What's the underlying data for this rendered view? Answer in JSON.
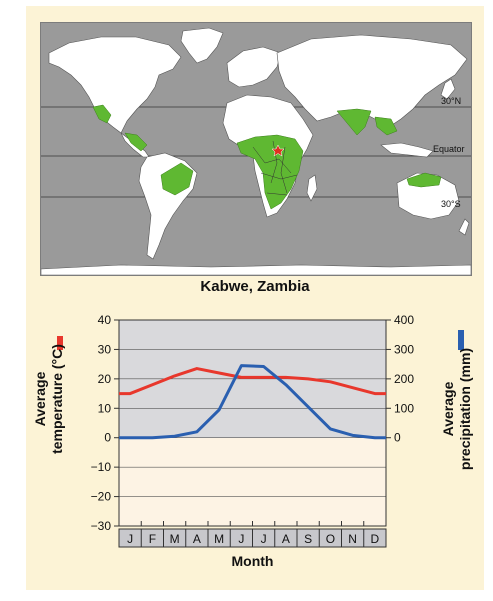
{
  "map": {
    "latitude_labels": [
      "30°N",
      "Equator",
      "30°S"
    ],
    "colors": {
      "ocean": "#9a9a9a",
      "land": "#ffffff",
      "border": "#555555",
      "climate_region": "#5fb832",
      "marker": "#e03020"
    }
  },
  "location_title": "Kabwe, Zambia",
  "chart_data": {
    "type": "line",
    "title": "Kabwe, Zambia",
    "categories": [
      "J",
      "F",
      "M",
      "A",
      "M",
      "J",
      "J",
      "A",
      "S",
      "O",
      "N",
      "D"
    ],
    "xlabel": "Month",
    "ylabel_left_line1": "Average",
    "ylabel_left_line2": "temperature (°C)",
    "ylabel_right_line1": "Average",
    "ylabel_right_line2": "precipitation (mm)",
    "ylim_left": [
      -30,
      40
    ],
    "ylim_right": [
      0,
      400
    ],
    "left_ticks": [
      "40",
      "30",
      "20",
      "10",
      "0",
      "−10",
      "−20",
      "−30"
    ],
    "right_ticks": [
      "400",
      "300",
      "200",
      "100",
      "0"
    ],
    "grid": true,
    "series": [
      {
        "axis": "left",
        "color": "#e8372c",
        "values": [
          15,
          18,
          21,
          23.5,
          22,
          20.5,
          20.5,
          20.5,
          20,
          19,
          17,
          15
        ]
      },
      {
        "axis": "right",
        "color": "#2a5fb0",
        "values": [
          0,
          0,
          5,
          20,
          95,
          245,
          242,
          180,
          105,
          30,
          8,
          0
        ]
      }
    ],
    "colors": {
      "plot_upper": "#d9d9dc",
      "plot_lower": "#fdf3e4",
      "month_strip": "#c8c8cc"
    }
  }
}
